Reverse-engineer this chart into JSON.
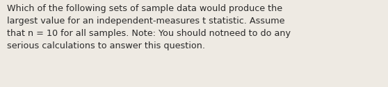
{
  "text": "Which of the following sets of sample data would produce the\nlargest value for an independent-measures t statistic. Assume\nthat n = 10 for all samples. Note: You should notneed to do any\nserious calculations to answer this question.",
  "background_color": "#eeeae3",
  "text_color": "#2a2a2a",
  "font_size": 9.2,
  "fig_width": 5.58,
  "fig_height": 1.26,
  "dpi": 100
}
